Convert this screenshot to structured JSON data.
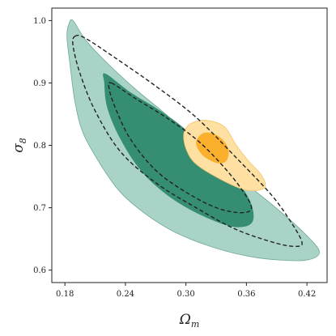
{
  "chart_data": {
    "type": "contour",
    "xlabel": "Ω",
    "xlabel_sub": "m",
    "ylabel": "σ",
    "ylabel_sub": "8",
    "xlim": [
      0.167,
      0.44
    ],
    "ylim": [
      0.58,
      1.02
    ],
    "xticks": [
      {
        "value": 0.18,
        "label": "0.18"
      },
      {
        "value": 0.24,
        "label": "0.24"
      },
      {
        "value": 0.3,
        "label": "0.30"
      },
      {
        "value": 0.36,
        "label": "0.36"
      },
      {
        "value": 0.42,
        "label": "0.42"
      }
    ],
    "yticks": [
      {
        "value": 0.6,
        "label": "0.6"
      },
      {
        "value": 0.7,
        "label": "0.7"
      },
      {
        "value": 0.8,
        "label": "0.8"
      },
      {
        "value": 0.9,
        "label": "0.9"
      },
      {
        "value": 1.0,
        "label": "1.0"
      }
    ],
    "colors": {
      "green_outer_fill": "#a9d3c7",
      "green_outer_stroke": "#6ea897",
      "green_inner_fill": "#2f8a6e",
      "orange_outer_fill": "#fde0a2",
      "orange_outer_stroke": "#f3c46a",
      "orange_inner_fill": "#fbb02d",
      "dashed": "#222222"
    },
    "series": [
      {
        "style": "filled-outer",
        "color": "green",
        "points": [
          [
            0.188,
            1.0
          ],
          [
            0.2,
            0.97
          ],
          [
            0.22,
            0.935
          ],
          [
            0.25,
            0.89
          ],
          [
            0.28,
            0.85
          ],
          [
            0.31,
            0.805
          ],
          [
            0.34,
            0.76
          ],
          [
            0.37,
            0.725
          ],
          [
            0.4,
            0.685
          ],
          [
            0.42,
            0.655
          ],
          [
            0.432,
            0.632
          ],
          [
            0.428,
            0.62
          ],
          [
            0.41,
            0.615
          ],
          [
            0.37,
            0.62
          ],
          [
            0.33,
            0.635
          ],
          [
            0.29,
            0.66
          ],
          [
            0.26,
            0.69
          ],
          [
            0.235,
            0.725
          ],
          [
            0.215,
            0.77
          ],
          [
            0.198,
            0.82
          ],
          [
            0.19,
            0.87
          ],
          [
            0.185,
            0.93
          ],
          [
            0.182,
            0.975
          ],
          [
            0.184,
            0.995
          ]
        ]
      },
      {
        "style": "filled-inner",
        "color": "green",
        "points": [
          [
            0.22,
            0.915
          ],
          [
            0.245,
            0.885
          ],
          [
            0.275,
            0.855
          ],
          [
            0.3,
            0.825
          ],
          [
            0.325,
            0.785
          ],
          [
            0.35,
            0.745
          ],
          [
            0.365,
            0.705
          ],
          [
            0.365,
            0.675
          ],
          [
            0.345,
            0.67
          ],
          [
            0.31,
            0.692
          ],
          [
            0.28,
            0.722
          ],
          [
            0.255,
            0.76
          ],
          [
            0.235,
            0.81
          ],
          [
            0.222,
            0.86
          ],
          [
            0.219,
            0.9
          ]
        ]
      },
      {
        "style": "filled-outer",
        "color": "orange",
        "points": [
          [
            0.305,
            0.835
          ],
          [
            0.32,
            0.84
          ],
          [
            0.338,
            0.83
          ],
          [
            0.35,
            0.8
          ],
          [
            0.362,
            0.775
          ],
          [
            0.375,
            0.752
          ],
          [
            0.378,
            0.732
          ],
          [
            0.36,
            0.728
          ],
          [
            0.335,
            0.745
          ],
          [
            0.31,
            0.77
          ],
          [
            0.3,
            0.795
          ],
          [
            0.298,
            0.82
          ]
        ]
      },
      {
        "style": "filled-inner",
        "color": "orange",
        "points": [
          [
            0.318,
            0.82
          ],
          [
            0.332,
            0.815
          ],
          [
            0.342,
            0.795
          ],
          [
            0.34,
            0.775
          ],
          [
            0.33,
            0.772
          ],
          [
            0.316,
            0.785
          ],
          [
            0.31,
            0.805
          ]
        ]
      },
      {
        "style": "dashed",
        "points": [
          [
            0.19,
            0.975
          ],
          [
            0.2,
            0.972
          ],
          [
            0.23,
            0.94
          ],
          [
            0.27,
            0.895
          ],
          [
            0.31,
            0.845
          ],
          [
            0.35,
            0.78
          ],
          [
            0.385,
            0.72
          ],
          [
            0.405,
            0.675
          ],
          [
            0.415,
            0.645
          ],
          [
            0.41,
            0.638
          ],
          [
            0.39,
            0.643
          ],
          [
            0.35,
            0.665
          ],
          [
            0.31,
            0.7
          ],
          [
            0.27,
            0.74
          ],
          [
            0.235,
            0.79
          ],
          [
            0.21,
            0.855
          ],
          [
            0.195,
            0.915
          ],
          [
            0.188,
            0.96
          ]
        ]
      },
      {
        "style": "dashed",
        "points": [
          [
            0.226,
            0.9
          ],
          [
            0.25,
            0.875
          ],
          [
            0.28,
            0.845
          ],
          [
            0.31,
            0.81
          ],
          [
            0.335,
            0.77
          ],
          [
            0.355,
            0.73
          ],
          [
            0.365,
            0.7
          ],
          [
            0.355,
            0.692
          ],
          [
            0.33,
            0.7
          ],
          [
            0.3,
            0.725
          ],
          [
            0.27,
            0.76
          ],
          [
            0.245,
            0.81
          ],
          [
            0.23,
            0.86
          ],
          [
            0.224,
            0.89
          ]
        ]
      }
    ]
  }
}
